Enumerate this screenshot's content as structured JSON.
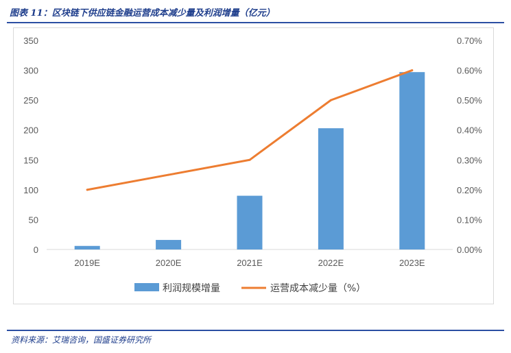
{
  "figure": {
    "title": "图表 11：区块链下供应链金融运营成本减少量及利润增量（亿元）",
    "source": "资料来源：艾瑞咨询，国盛证券研究所"
  },
  "colors": {
    "bar": "#5b9bd5",
    "line": "#ed7d31",
    "rule": "#2b4ea2"
  },
  "chart_data": {
    "type": "bar",
    "categories": [
      "2019E",
      "2020E",
      "2021E",
      "2022E",
      "2023E"
    ],
    "series": [
      {
        "name": "利润规模增量",
        "type": "bar",
        "axis": "left",
        "values": [
          6,
          16,
          90,
          203,
          297
        ]
      },
      {
        "name": "运营成本减少量（%）",
        "type": "line",
        "axis": "right",
        "values": [
          0.2,
          0.25,
          0.3,
          0.5,
          0.6
        ]
      }
    ],
    "y_left": {
      "ylim": [
        0,
        350
      ],
      "ticks": [
        "0",
        "50",
        "100",
        "150",
        "200",
        "250",
        "300",
        "350"
      ]
    },
    "y_right": {
      "ylim": [
        0,
        0.7
      ],
      "ticks": [
        "0.00%",
        "0.10%",
        "0.20%",
        "0.30%",
        "0.40%",
        "0.50%",
        "0.60%",
        "0.70%"
      ]
    },
    "grid": false,
    "legend": "bottom"
  }
}
